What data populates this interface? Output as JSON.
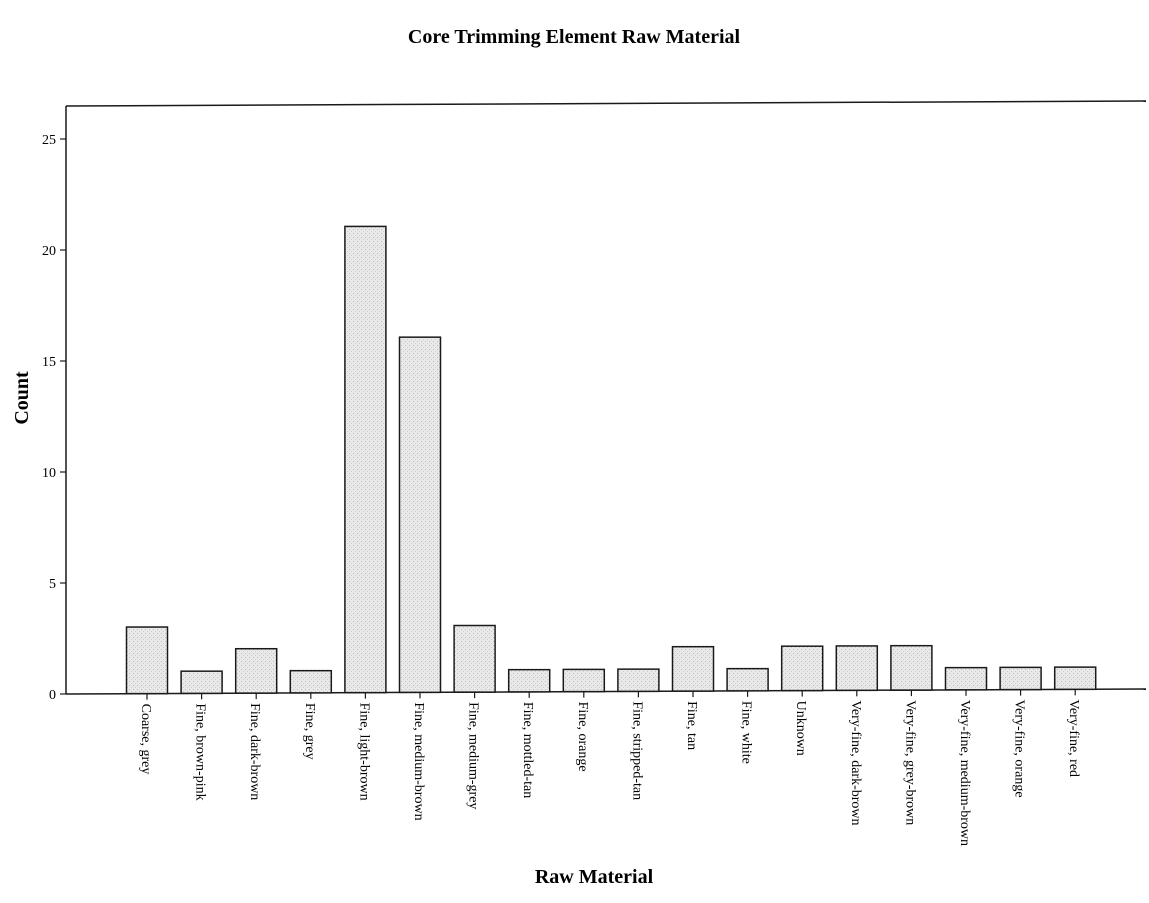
{
  "chart_data": {
    "type": "bar",
    "title": "Core Trimming Element  Raw Material",
    "xlabel": "Raw Material",
    "ylabel": "Count",
    "ylim": [
      0,
      26
    ],
    "yticks": [
      "0",
      "5",
      "10",
      "15",
      "20",
      "25"
    ],
    "grid": false,
    "legend": "none",
    "categories": [
      "Coarse, grey",
      "Fine, brown-pink",
      "Fine, dark-brown",
      "Fine, grey",
      "Fine, light-brown",
      "Fine, medium-brown",
      "Fine, medium-grey",
      "Fine, mottled-tan",
      "Fine, orange",
      "Fine, stripped-tan",
      "Fine, tan",
      "Fine, white",
      "Unknown",
      "Very-fine, dark-brown",
      "Very-fine, grey-brown",
      "Very-fine, medium-brown",
      "Very-fine, orange",
      "Very-fine, red"
    ],
    "values": [
      3,
      1,
      2,
      1,
      21,
      16,
      3,
      1,
      1,
      1,
      2,
      1,
      2,
      2,
      2,
      1,
      1,
      1
    ],
    "colors": {
      "bar_fill": "#e6e6e6",
      "bar_stroke": "#1a1a1a",
      "axis": "#1a1a1a"
    }
  }
}
